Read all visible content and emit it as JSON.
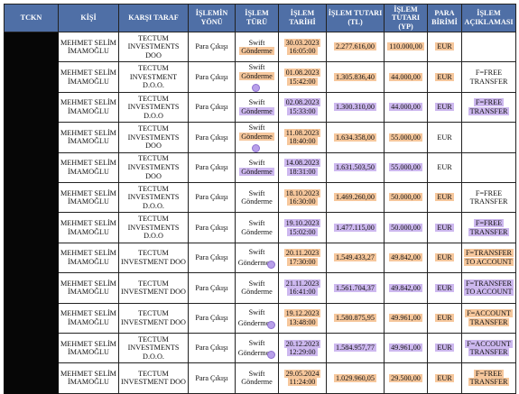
{
  "headers": [
    "TCKN",
    "KİŞİ",
    "KARŞI TARAF",
    "İŞLEMİN YÖNÜ",
    "İŞLEM TÜRÜ",
    "İŞLEM TARİHİ",
    "İŞLEM TUTARI (TL)",
    "İŞLEM TUTARI (YP)",
    "PARA BİRİMİ",
    "İŞLEM AÇIKLAMASI"
  ],
  "highlight_colors": {
    "orange": "#f6c79c",
    "purple": "#cdb8ef",
    "header": "#4f6fa6"
  },
  "rows": [
    {
      "person": "MEHMET SELİM İMAMOĞLU",
      "counterparty": "TECTUM INVESTMENTS DOO",
      "direction": "Para Çıkışı",
      "type_a": "Swift",
      "type_b": "Gönderme",
      "date": "30.03.2023",
      "time": "16:05:00",
      "tl": "2.277.616,00",
      "yp": "110.000,00",
      "currency": "EUR",
      "desc_a": "",
      "desc_b": ""
    },
    {
      "person": "MEHMET SELİM İMAMOĞLU",
      "counterparty": "TECTUM INVESTMENT D.O.O.",
      "direction": "Para Çıkışı",
      "type_a": "Swift",
      "type_b": "Gönderme",
      "date": "01.08.2023",
      "time": "15:42:00",
      "tl": "1.305.836,40",
      "yp": "44.000,00",
      "currency": "EUR",
      "desc_a": "F=FREE",
      "desc_b": "TRANSFER"
    },
    {
      "person": "MEHMET SELİM İMAMOĞLU",
      "counterparty": "TECTUM INVESTMENTS D.O.O",
      "direction": "Para Çıkışı",
      "type_a": "Swift",
      "type_b": "Gönderme",
      "date": "02.08.2023",
      "time": "15:33:00",
      "tl": "1.300.310,00",
      "yp": "44.000,00",
      "currency": "EUR",
      "desc_a": "F=FREE",
      "desc_b": "TRANSFER"
    },
    {
      "person": "MEHMET SELİM İMAMOĞLU",
      "counterparty": "TECTUM INVESTMENTS DOO",
      "direction": "Para Çıkışı",
      "type_a": "Swift",
      "type_b": "Gönderme",
      "date": "11.08.2023",
      "time": "18:40:00",
      "tl": "1.634.358,00",
      "yp": "55.000,00",
      "currency": "EUR",
      "desc_a": "",
      "desc_b": ""
    },
    {
      "person": "MEHMET SELİM İMAMOĞLU",
      "counterparty": "TECTUM INVESTMENTS DOO",
      "direction": "Para Çıkışı",
      "type_a": "Swift",
      "type_b": "Gönderme",
      "date": "14.08.2023",
      "time": "18:31:00",
      "tl": "1.631.503,50",
      "yp": "55.000,00",
      "currency": "EUR",
      "desc_a": "",
      "desc_b": ""
    },
    {
      "person": "MEHMET SELİM İMAMOĞLU",
      "counterparty": "TECTUM INVESTMENTS D.O.O.",
      "direction": "Para Çıkışı",
      "type_a": "Swift",
      "type_b": "Gönderme",
      "date": "18.10.2023",
      "time": "16:30:00",
      "tl": "1.469.260,00",
      "yp": "50.000,00",
      "currency": "EUR",
      "desc_a": "F=FREE",
      "desc_b": "TRANSFER"
    },
    {
      "person": "MEHMET SELİM İMAMOĞLU",
      "counterparty": "TECTUM INVESTMENTS D.O.O",
      "direction": "Para Çıkışı",
      "type_a": "Swift",
      "type_b": "Gönderme",
      "date": "19.10.2023",
      "time": "15:02:00",
      "tl": "1.477.115,00",
      "yp": "50.000,00",
      "currency": "EUR",
      "desc_a": "F=FREE",
      "desc_b": "TRANSFER"
    },
    {
      "person": "MEHMET SELİM İMAMOĞLU",
      "counterparty": "TECTUM INVESTMENT DOO",
      "direction": "Para Çıkışı",
      "type_a": "Swift",
      "type_b": "Gönderme",
      "date": "20.11.2023",
      "time": "17:30:00",
      "tl": "1.549.433,27",
      "yp": "49.842,00",
      "currency": "EUR",
      "desc_a": "F=TRANSFER",
      "desc_b": "TO ACCOUNT"
    },
    {
      "person": "MEHMET SELİM İMAMOĞLU",
      "counterparty": "TECTUM INVESTMENT DOO",
      "direction": "Para Çıkışı",
      "type_a": "Swift",
      "type_b": "Gönderme",
      "date": "21.11.2023",
      "time": "16:41:00",
      "tl": "1.561.704,37",
      "yp": "49.842,00",
      "currency": "EUR",
      "desc_a": "F=TRANSFER",
      "desc_b": "TO ACCOUNT"
    },
    {
      "person": "MEHMET SELİM İMAMOĞLU",
      "counterparty": "TECTUM INVESTMENT DOO",
      "direction": "Para Çıkışı",
      "type_a": "Swift",
      "type_b": "Gönderme",
      "date": "19.12.2023",
      "time": "13:48:00",
      "tl": "1.580.875,95",
      "yp": "49.961,00",
      "currency": "EUR",
      "desc_a": "F=ACCOUNT",
      "desc_b": "TRANSFER"
    },
    {
      "person": "MEHMET SELİM İMAMOĞLU",
      "counterparty": "TECTUM INVESTMENTS D.O.O.",
      "direction": "Para Çıkışı",
      "type_a": "Swift",
      "type_b": "Gönderme",
      "date": "20.12.2023",
      "time": "12:29:00",
      "tl": "1.584.957,77",
      "yp": "49.961,00",
      "currency": "EUR",
      "desc_a": "F=ACCOUNT",
      "desc_b": "TRANSFER"
    },
    {
      "person": "MEHMET SELİM İMAMOĞLU",
      "counterparty": "TECTUM INVESTMENT DOO",
      "direction": "Para Çıkışı",
      "type_a": "Swift",
      "type_b": "Gönderme",
      "date": "29.05.2024",
      "time": "11:24:00",
      "tl": "1.029.960,05",
      "yp": "29.500,00",
      "currency": "EUR",
      "desc_a": "F=FREE",
      "desc_b": "TRANSFER"
    }
  ]
}
